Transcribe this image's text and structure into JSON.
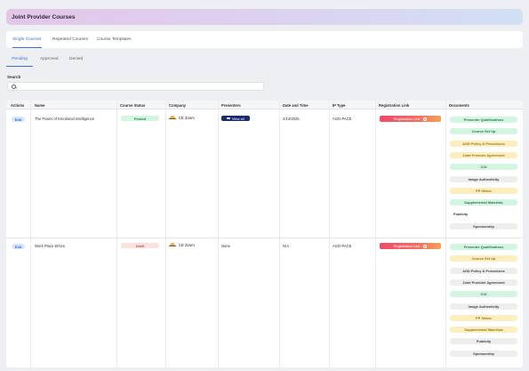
{
  "header": {
    "title": "Joint Provider Courses"
  },
  "tabs": [
    "Single Courses",
    "Repeated Courses",
    "Course Templates"
  ],
  "subtabs": [
    "Pending",
    "Approved",
    "Denied"
  ],
  "search": {
    "label": "Search",
    "value": "",
    "placeholder": ""
  },
  "table": {
    "columns": [
      "Actions",
      "Name",
      "Course Status",
      "Company",
      "Presenters",
      "Date and Time",
      "IP Type",
      "Registration Link",
      "Documents"
    ],
    "rows": [
      {
        "action": "Edit",
        "name": "The Power of Emotional Intelligence",
        "status": "Posted",
        "status_type": "posted",
        "company": "CE Zoom",
        "presenters": "View all",
        "presenters_button": true,
        "datetime": "2/14/2025",
        "ip_type": "AGD-PACE",
        "registration": "Registration Link",
        "documents": [
          {
            "label": "Presenter Qualifications",
            "style": "green"
          },
          {
            "label": "Course Set Up",
            "style": "green"
          },
          {
            "label": "AGD Policy & Procedures",
            "style": "yellow"
          },
          {
            "label": "Joint Provider Agreement",
            "style": "yellow"
          },
          {
            "label": "COI",
            "style": "green"
          },
          {
            "label": "Image Authenticity",
            "style": "gray"
          },
          {
            "label": "PP Slides",
            "style": "yellow"
          },
          {
            "label": "Supplemental Materials",
            "style": "green"
          },
          {
            "label": "Publicity",
            "style": "plain"
          },
          {
            "label": "Sponsorship",
            "style": "gray"
          }
        ]
      },
      {
        "action": "Edit",
        "name": "Work Place Ethics",
        "status": "Draft",
        "status_type": "draft",
        "company": "CE Zoom",
        "presenters": "None",
        "presenters_button": false,
        "datetime": "N/A",
        "ip_type": "AGD-PACE",
        "registration": "Registration Link",
        "documents": [
          {
            "label": "Presenter Qualifications",
            "style": "green"
          },
          {
            "label": "Course Set Up",
            "style": "yellow"
          },
          {
            "label": "AGD Policy & Procedures",
            "style": "gray"
          },
          {
            "label": "Joint Provider Agreement",
            "style": "gray"
          },
          {
            "label": "COI",
            "style": "green"
          },
          {
            "label": "Image Authenticity",
            "style": "gray"
          },
          {
            "label": "PP Slides",
            "style": "yellow"
          },
          {
            "label": "Supplemental Materials",
            "style": "yellow"
          },
          {
            "label": "Publicity",
            "style": "gray"
          },
          {
            "label": "Sponsorship",
            "style": "gray"
          }
        ]
      }
    ]
  },
  "colors": {
    "accent": "#3b6fd6",
    "posted": "#1f8a4c",
    "draft": "#d24b4b",
    "registration_gradient_start": "#f04a6a",
    "registration_gradient_end": "#f4a257"
  },
  "icons": {
    "search": "search-icon",
    "presenters": "eye-icon",
    "registration": "arrow-icon",
    "company": "company-logo"
  }
}
